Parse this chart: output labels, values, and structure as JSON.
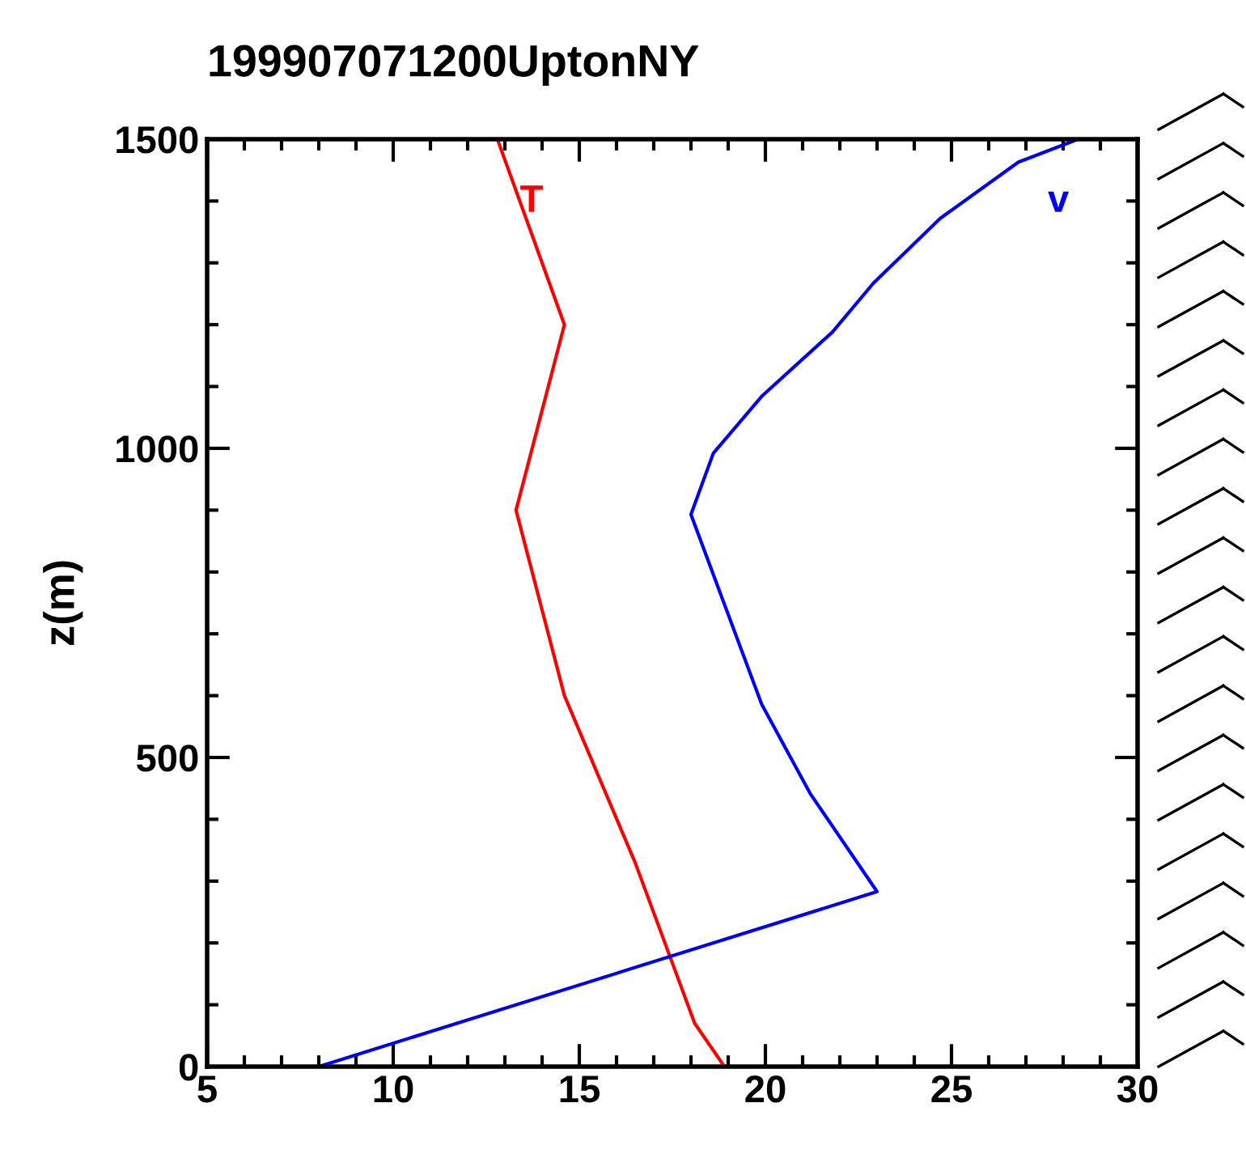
{
  "chart_data": {
    "type": "line",
    "title": "199907071200UptonNY",
    "ylabel": "z(m)",
    "xlim": [
      5,
      30
    ],
    "xticks": [
      5,
      10,
      15,
      20,
      25,
      30
    ],
    "ylim": [
      0,
      1500
    ],
    "yticks": [
      0,
      500,
      1000,
      1500
    ],
    "grid": false,
    "legend": false,
    "marker": "none",
    "line_style": "solid",
    "series": [
      {
        "name": "T",
        "color": "#ff0000",
        "x": [
          18.9,
          18.1,
          16.5,
          14.6,
          13.3,
          14.6,
          12.8
        ],
        "values": [
          0,
          70,
          330,
          600,
          900,
          1200,
          1500
        ]
      },
      {
        "name": "v",
        "color": "#0000ff",
        "x": [
          8.0,
          23.0,
          21.2,
          19.9,
          18.0,
          18.6,
          19.9,
          21.8,
          22.9,
          24.7,
          26.8,
          28.4
        ],
        "values": [
          0,
          283,
          442,
          586,
          893,
          992,
          1084,
          1188,
          1267,
          1372,
          1463,
          1500
        ]
      }
    ]
  }
}
